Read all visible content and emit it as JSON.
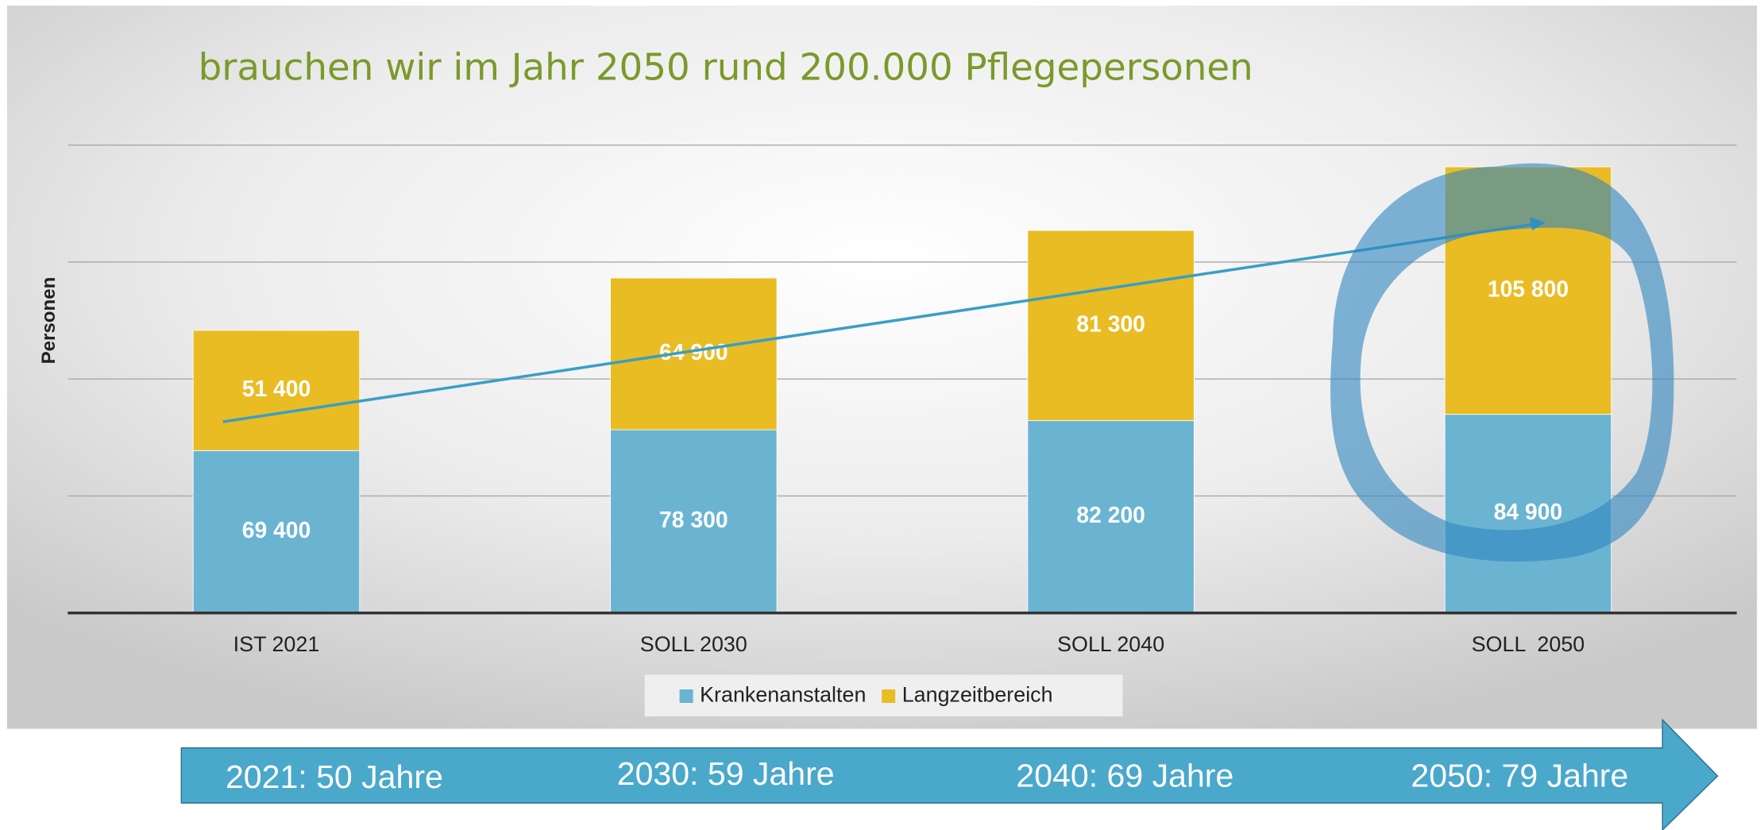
{
  "chart_data": {
    "type": "bar",
    "stacked": true,
    "title": "brauchen wir im Jahr 2050 rund 200.000 Pflegepersonen",
    "ylabel": "Personen",
    "categories": [
      "IST 2021",
      "SOLL 2030",
      "SOLL 2040",
      "SOLL  2050"
    ],
    "series": [
      {
        "name": "Krankenanstalten",
        "color": "#6ab4d2",
        "values": [
          69400,
          78300,
          82200,
          84900
        ],
        "value_labels": [
          "69 400",
          "78 300",
          "82 200",
          "84 900"
        ]
      },
      {
        "name": "Langzeitbereich",
        "color": "#e9bc24",
        "values": [
          51400,
          64900,
          81300,
          105800
        ],
        "value_labels": [
          "51 400",
          "64 900",
          "81 300",
          "105 800"
        ]
      }
    ],
    "ylim": [
      0,
      200000
    ],
    "yticks": [
      0,
      50000,
      100000,
      150000,
      200000
    ],
    "grid": true,
    "legend": "bottom",
    "annotations": [
      "2021: 50 Jahre",
      "2030: 59 Jahre",
      "2040: 69 Jahre",
      "2050: 79 Jahre"
    ]
  }
}
